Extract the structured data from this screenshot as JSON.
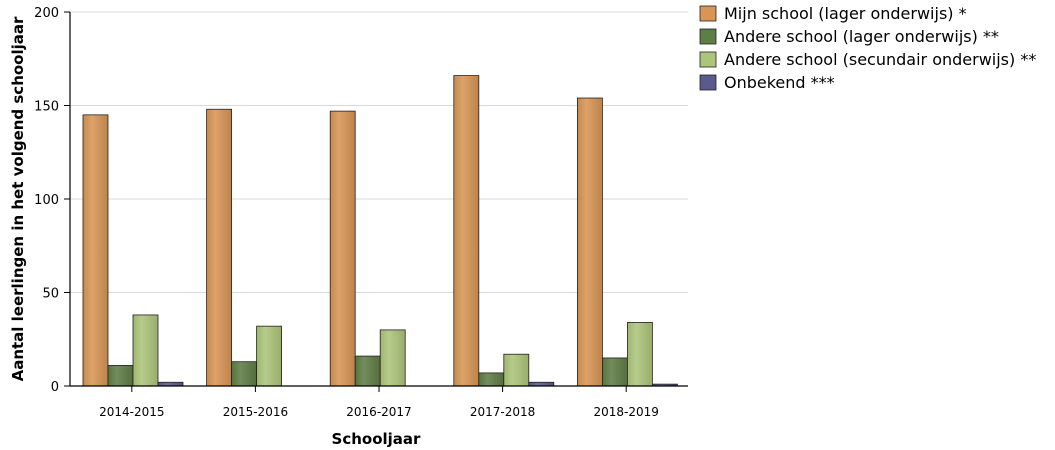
{
  "chart_data": {
    "type": "bar",
    "title": "",
    "xlabel": "Schooljaar",
    "ylabel": "Aantal leerlingen in het volgend schooljaar",
    "categories": [
      "2014-2015",
      "2015-2016",
      "2016-2017",
      "2017-2018",
      "2018-2019"
    ],
    "ylim": [
      0,
      200
    ],
    "yticks": [
      0,
      50,
      100,
      150,
      200
    ],
    "grid": true,
    "legend_position": "top-right",
    "series": [
      {
        "name": "Mijn school (lager onderwijs) *",
        "color": "#d89555",
        "values": [
          145,
          148,
          147,
          166,
          154
        ]
      },
      {
        "name": "Andere school (lager onderwijs) **",
        "color": "#5f7e45",
        "values": [
          11,
          13,
          16,
          7,
          15
        ]
      },
      {
        "name": "Andere school (secundair onderwijs) **",
        "color": "#adc57a",
        "values": [
          38,
          32,
          30,
          17,
          34
        ]
      },
      {
        "name": "Onbekend ***",
        "color": "#5a5a8e",
        "values": [
          2,
          0,
          0,
          2,
          1
        ]
      }
    ]
  }
}
